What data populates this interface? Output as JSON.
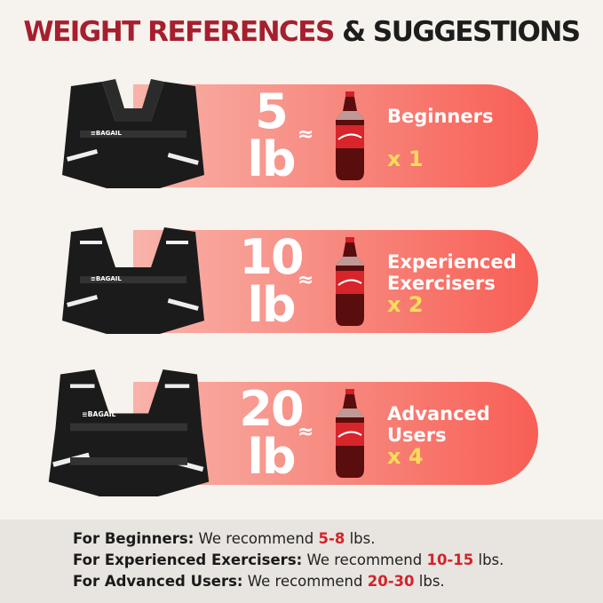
{
  "title": {
    "part1": "WEIGHT REFERENCES",
    "part2": "& SUGGESTIONS"
  },
  "colors": {
    "title_red": "#a51f2e",
    "pill_start": "#f8b3aa",
    "pill_end": "#f85e55",
    "multiplier": "#f8dc5b",
    "highlight": "#d3232a"
  },
  "brand": "BAGAIL",
  "bottle_logo": "Coca-Cola",
  "approx_symbol": "≈",
  "rows": [
    {
      "number": "5",
      "unit": "lb",
      "label_lines": [
        "Beginners"
      ],
      "multiplier": "x 1"
    },
    {
      "number": "10",
      "unit": "lb",
      "label_lines": [
        "Experienced",
        "Exercisers"
      ],
      "multiplier": "x 2"
    },
    {
      "number": "20",
      "unit": "lb",
      "label_lines": [
        "Advanced",
        "Users"
      ],
      "multiplier": "x 4"
    }
  ],
  "recommendations": [
    {
      "group": "For Beginners:",
      "text": "We recommend",
      "range": "5-8",
      "unit": "lbs."
    },
    {
      "group": "For Experienced Exercisers:",
      "text": "We recommend",
      "range": "10-15",
      "unit": "lbs."
    },
    {
      "group": "For Advanced Users:",
      "text": "We recommend",
      "range": "20-30",
      "unit": "lbs."
    }
  ]
}
